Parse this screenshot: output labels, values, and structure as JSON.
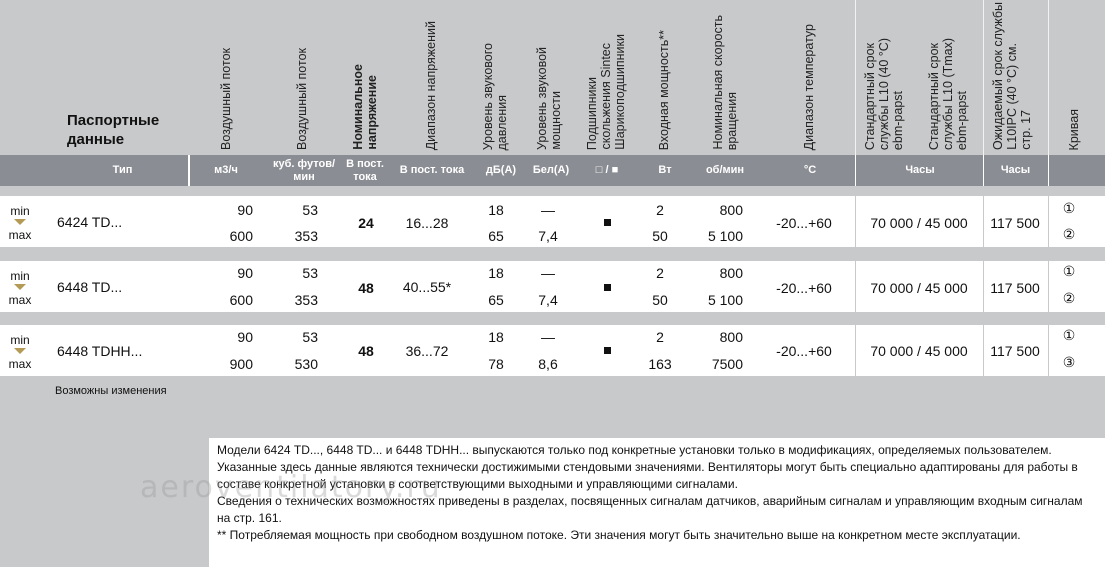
{
  "title": "Паспортные данные",
  "headers": {
    "airflow1": "Воздушный поток",
    "airflow2": "Воздушный поток",
    "voltage1": "Номинальное",
    "voltage2": "напряжение",
    "vrange": "Диапазон напряжений",
    "sound_press1": "Уровень звукового",
    "sound_press2": "давления",
    "sound_power1": "Уровень звуковой",
    "sound_power2": "мощности",
    "bearing1": "Подшипники",
    "bearing2": "скольжения Sintec",
    "bearing3": "Шарикоподшипники",
    "power": "Входная мощность**",
    "speed1": "Номинальная скорость",
    "speed2": "вращения",
    "temp": "Диапазон температур",
    "life1a": "Стандартный срок",
    "life1b": "службы L10 (40 °C)",
    "life1c": "ebm-papst",
    "life2a": "Стандартный срок",
    "life2b": "службы L10 (Tmax)",
    "life2c": "ebm-papst",
    "life3a": "Ожидаемый срок службы",
    "life3b": "L10IPC (40 °C) см.",
    "life3c": "стр. 17",
    "curve": "Кривая"
  },
  "units": {
    "type": "Тип",
    "m3h": "м3/ч",
    "cfm1": "куб. футов/",
    "cfm2": "мин",
    "vdc1": "В пост.",
    "vdc2": "тока",
    "vrange": "В пост. тока",
    "dba": "дБ(А)",
    "bela": "Бел(А)",
    "bearing": "□ / ■",
    "w": "Вт",
    "rpm": "об/мин",
    "c": "°C",
    "hours1": "Часы",
    "hours2": "Часы"
  },
  "rows": [
    {
      "min": "min",
      "max": "max",
      "type": "6424 TD...",
      "af1a": "90",
      "af1b": "600",
      "af2a": "53",
      "af2b": "353",
      "volt": "24",
      "vrange": "16...28",
      "sp_a": "18",
      "sp_b": "65",
      "sw_a": "—",
      "sw_b": "7,4",
      "pw_a": "2",
      "pw_b": "50",
      "rpm_a": "800",
      "rpm_b": "5 100",
      "temp": "-20...+60",
      "life": "70 000 / 45 000",
      "life3": "117 500",
      "c_a": "①",
      "c_b": "②"
    },
    {
      "min": "min",
      "max": "max",
      "type": "6448 TD...",
      "af1a": "90",
      "af1b": "600",
      "af2a": "53",
      "af2b": "353",
      "volt": "48",
      "vrange": "40...55*",
      "sp_a": "18",
      "sp_b": "65",
      "sw_a": "—",
      "sw_b": "7,4",
      "pw_a": "2",
      "pw_b": "50",
      "rpm_a": "800",
      "rpm_b": "5 100",
      "temp": "-20...+60",
      "life": "70 000 / 45 000",
      "life3": "117 500",
      "c_a": "①",
      "c_b": "②"
    },
    {
      "min": "min",
      "max": "max",
      "type": "6448 TDHH...",
      "af1a": "90",
      "af1b": "900",
      "af2a": "53",
      "af2b": "530",
      "volt": "48",
      "vrange": "36...72",
      "sp_a": "18",
      "sp_b": "78",
      "sw_a": "—",
      "sw_b": "8,6",
      "pw_a": "2",
      "pw_b": "163",
      "rpm_a": "800",
      "rpm_b": "7500",
      "temp": "-20...+60",
      "life": "70 000 / 45 000",
      "life3": "117 500",
      "c_a": "①",
      "c_b": "③"
    }
  ],
  "changes_note": "Возможны изменения",
  "footnotes": [
    "Модели 6424 TD..., 6448 TD... и 6448 TDHH... выпускаются только под конкретные установки только в модификациях, определяемых пользователем.",
    "Указанные здесь данные являются технически достижимыми стендовыми значениями. Вентиляторы могут быть специально адаптированы для работы в составе конкретной установки в соответствующими выходными и управляющими сигналами.",
    "Сведения о технических возможностях приведены в разделах, посвященных сигналам датчиков, аварийным сигналам и управляющим входным сигналам на стр. 161.",
    "** Потребляемая мощность при свободном воздушном потоке. Эти значения могут быть значительно выше на конкретном месте эксплуатации."
  ],
  "watermark": "aeroventilatory.ru"
}
